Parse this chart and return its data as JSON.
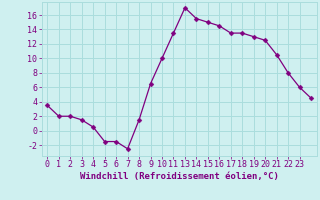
{
  "x": [
    0,
    1,
    2,
    3,
    4,
    5,
    6,
    7,
    8,
    9,
    10,
    11,
    12,
    13,
    14,
    15,
    16,
    17,
    18,
    19,
    20,
    21,
    22,
    23
  ],
  "y": [
    3.5,
    2.0,
    2.0,
    1.5,
    0.5,
    -1.5,
    -1.5,
    -2.5,
    1.5,
    6.5,
    10.0,
    13.5,
    17.0,
    15.5,
    15.0,
    14.5,
    13.5,
    13.5,
    13.0,
    12.5,
    10.5,
    8.0,
    6.0,
    4.5
  ],
  "line_color": "#800080",
  "marker": "D",
  "marker_size": 2.5,
  "bg_color": "#cff0f0",
  "grid_color": "#aadddd",
  "xlabel": "Windchill (Refroidissement éolien,°C)",
  "xlabel_color": "#800080",
  "tick_color": "#800080",
  "yticks": [
    -2,
    0,
    2,
    4,
    6,
    8,
    10,
    12,
    14,
    16
  ],
  "ytick_labels": [
    "-2",
    "0",
    "2",
    "4",
    "6",
    "8",
    "10",
    "12",
    "14",
    "16"
  ],
  "ylim": [
    -3.5,
    17.8
  ],
  "xlim": [
    -0.5,
    23.5
  ],
  "xtick_labels": [
    "0",
    "1",
    "2",
    "3",
    "4",
    "5",
    "6",
    "7",
    "8",
    "9",
    "1011",
    "",
    "13141516171819202122",
    "",
    "",
    "",
    "",
    "",
    "",
    "",
    "",
    "23"
  ],
  "label_fontsize": 6.5,
  "tick_fontsize": 6
}
